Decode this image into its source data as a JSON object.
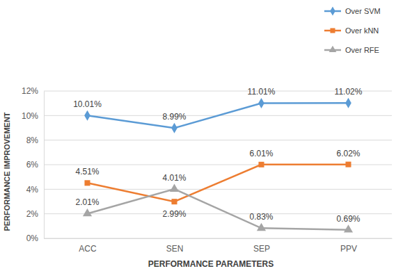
{
  "chart_data": {
    "type": "line",
    "x_label": "PERFORMANCE PARAMETERS",
    "y_label": "PERFORMANCE IMPROVEMENT",
    "categories": [
      "ACC",
      "SEN",
      "SEP",
      "PPV"
    ],
    "series": [
      {
        "name": "Over SVM",
        "color": "#5b9bd5",
        "marker": "diamond",
        "values": [
          10.01,
          8.99,
          11.01,
          11.02
        ],
        "value_labels": [
          "10.01%",
          "8.99%",
          "11.01%",
          "11.02%"
        ]
      },
      {
        "name": "Over kNN",
        "color": "#ed7d31",
        "marker": "square",
        "values": [
          4.51,
          2.99,
          6.01,
          6.02
        ],
        "value_labels": [
          "4.51%",
          "2.99%",
          "6.01%",
          "6.02%"
        ]
      },
      {
        "name": "Over RFE",
        "color": "#a5a5a5",
        "marker": "triangle",
        "values": [
          2.01,
          4.01,
          0.83,
          0.69
        ],
        "value_labels": [
          "2.01%",
          "4.01%",
          "0.83%",
          "0.69%"
        ]
      }
    ],
    "ylim": [
      0,
      12
    ],
    "yticks": [
      {
        "value": 0,
        "label": "0%"
      },
      {
        "value": 2,
        "label": "2%"
      },
      {
        "value": 4,
        "label": "4%"
      },
      {
        "value": 6,
        "label": "6%"
      },
      {
        "value": 8,
        "label": "8%"
      },
      {
        "value": 10,
        "label": "10%"
      },
      {
        "value": 12,
        "label": "12%"
      }
    ],
    "grid": true,
    "legend": "top-right",
    "data_labels": true
  }
}
